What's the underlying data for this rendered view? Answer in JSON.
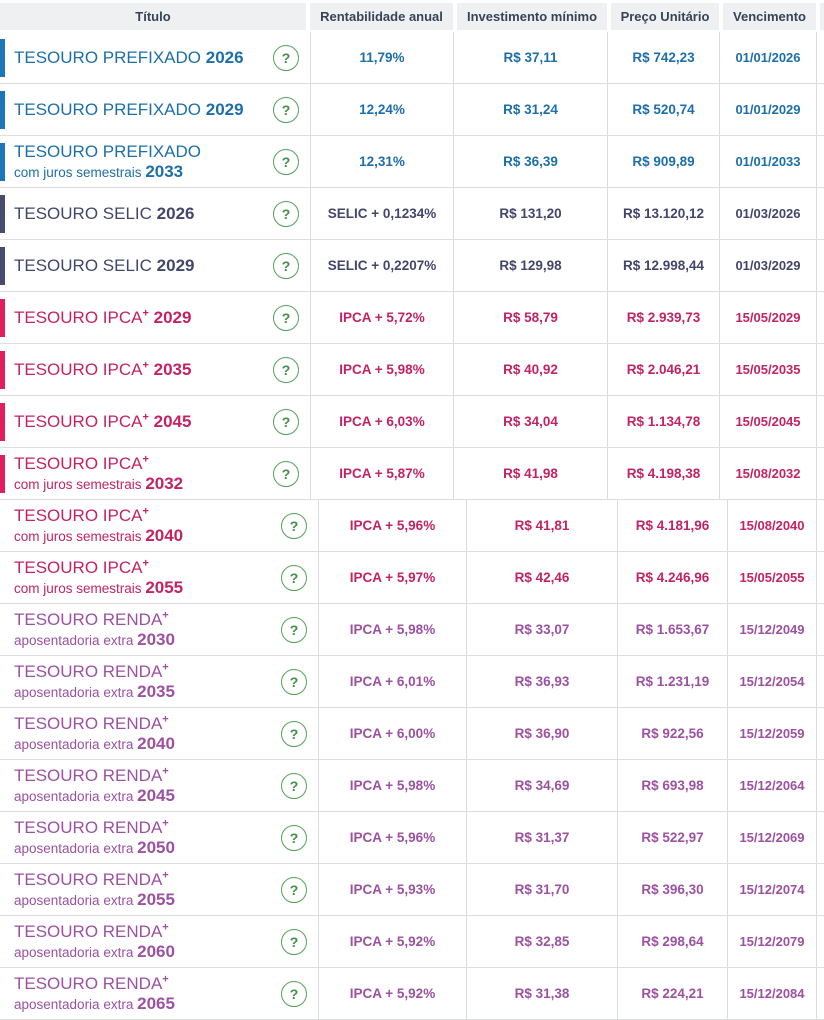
{
  "table": {
    "columns": [
      {
        "key": "titulo",
        "label": "Título"
      },
      {
        "key": "rentabilidade",
        "label": "Rentabilidade anual"
      },
      {
        "key": "investimento",
        "label": "Investimento mínimo"
      },
      {
        "key": "preco",
        "label": "Preço Unitário"
      },
      {
        "key": "vencimento",
        "label": "Vencimento"
      }
    ],
    "help_icon_glyph": "?",
    "rows": [
      {
        "title": "TESOURO PREFIXADO",
        "plus": false,
        "subtitle": "",
        "year": "2026",
        "theme": "prefixado",
        "bar": true,
        "section": "A",
        "rate": "11,79%",
        "min": "R$ 37,11",
        "price": "R$ 742,23",
        "due": "01/01/2026"
      },
      {
        "title": "TESOURO PREFIXADO",
        "plus": false,
        "subtitle": "",
        "year": "2029",
        "theme": "prefixado",
        "bar": true,
        "section": "A",
        "rate": "12,24%",
        "min": "R$ 31,24",
        "price": "R$ 520,74",
        "due": "01/01/2029"
      },
      {
        "title": "TESOURO PREFIXADO",
        "plus": false,
        "subtitle": "com juros semestrais",
        "year": "2033",
        "theme": "prefixado",
        "bar": true,
        "section": "A",
        "rate": "12,31%",
        "min": "R$ 36,39",
        "price": "R$ 909,89",
        "due": "01/01/2033"
      },
      {
        "title": "TESOURO SELIC",
        "plus": false,
        "subtitle": "",
        "year": "2026",
        "theme": "selic",
        "bar": true,
        "section": "A",
        "rate": "SELIC + 0,1234%",
        "min": "R$ 131,20",
        "price": "R$ 13.120,12",
        "due": "01/03/2026"
      },
      {
        "title": "TESOURO SELIC",
        "plus": false,
        "subtitle": "",
        "year": "2029",
        "theme": "selic",
        "bar": true,
        "section": "A",
        "rate": "SELIC + 0,2207%",
        "min": "R$ 129,98",
        "price": "R$ 12.998,44",
        "due": "01/03/2029"
      },
      {
        "title": "TESOURO IPCA",
        "plus": true,
        "subtitle": "",
        "year": "2029",
        "theme": "ipca",
        "bar": true,
        "section": "A",
        "rate": "IPCA + 5,72%",
        "min": "R$ 58,79",
        "price": "R$ 2.939,73",
        "due": "15/05/2029"
      },
      {
        "title": "TESOURO IPCA",
        "plus": true,
        "subtitle": "",
        "year": "2035",
        "theme": "ipca",
        "bar": true,
        "section": "A",
        "rate": "IPCA + 5,98%",
        "min": "R$ 40,92",
        "price": "R$ 2.046,21",
        "due": "15/05/2035"
      },
      {
        "title": "TESOURO IPCA",
        "plus": true,
        "subtitle": "",
        "year": "2045",
        "theme": "ipca",
        "bar": true,
        "section": "A",
        "rate": "IPCA + 6,03%",
        "min": "R$ 34,04",
        "price": "R$ 1.134,78",
        "due": "15/05/2045"
      },
      {
        "title": "TESOURO IPCA",
        "plus": true,
        "subtitle": "com juros semestrais",
        "year": "2032",
        "theme": "ipca",
        "bar": true,
        "section": "A",
        "rate": "IPCA + 5,87%",
        "min": "R$ 41,98",
        "price": "R$ 4.198,38",
        "due": "15/08/2032"
      },
      {
        "title": "TESOURO IPCA",
        "plus": true,
        "subtitle": "com juros semestrais",
        "year": "2040",
        "theme": "ipca",
        "bar": false,
        "section": "B",
        "rate": "IPCA + 5,96%",
        "min": "R$ 41,81",
        "price": "R$ 4.181,96",
        "due": "15/08/2040"
      },
      {
        "title": "TESOURO IPCA",
        "plus": true,
        "subtitle": "com juros semestrais",
        "year": "2055",
        "theme": "ipca",
        "bar": false,
        "section": "B",
        "rate": "IPCA + 5,97%",
        "min": "R$ 42,46",
        "price": "R$ 4.246,96",
        "due": "15/05/2055"
      },
      {
        "title": "TESOURO RENDA",
        "plus": true,
        "subtitle": "aposentadoria extra",
        "year": "2030",
        "theme": "renda",
        "bar": false,
        "section": "B",
        "rate": "IPCA + 5,98%",
        "min": "R$ 33,07",
        "price": "R$ 1.653,67",
        "due": "15/12/2049"
      },
      {
        "title": "TESOURO RENDA",
        "plus": true,
        "subtitle": "aposentadoria extra",
        "year": "2035",
        "theme": "renda",
        "bar": false,
        "section": "B",
        "rate": "IPCA + 6,01%",
        "min": "R$ 36,93",
        "price": "R$ 1.231,19",
        "due": "15/12/2054"
      },
      {
        "title": "TESOURO RENDA",
        "plus": true,
        "subtitle": "aposentadoria extra",
        "year": "2040",
        "theme": "renda",
        "bar": false,
        "section": "B",
        "rate": "IPCA + 6,00%",
        "min": "R$ 36,90",
        "price": "R$ 922,56",
        "due": "15/12/2059"
      },
      {
        "title": "TESOURO RENDA",
        "plus": true,
        "subtitle": "aposentadoria extra",
        "year": "2045",
        "theme": "renda",
        "bar": false,
        "section": "B",
        "rate": "IPCA + 5,98%",
        "min": "R$ 34,69",
        "price": "R$ 693,98",
        "due": "15/12/2064"
      },
      {
        "title": "TESOURO RENDA",
        "plus": true,
        "subtitle": "aposentadoria extra",
        "year": "2050",
        "theme": "renda",
        "bar": false,
        "section": "B",
        "rate": "IPCA + 5,96%",
        "min": "R$ 31,37",
        "price": "R$ 522,97",
        "due": "15/12/2069"
      },
      {
        "title": "TESOURO RENDA",
        "plus": true,
        "subtitle": "aposentadoria extra",
        "year": "2055",
        "theme": "renda",
        "bar": false,
        "section": "B",
        "rate": "IPCA + 5,93%",
        "min": "R$ 31,70",
        "price": "R$ 396,30",
        "due": "15/12/2074"
      },
      {
        "title": "TESOURO RENDA",
        "plus": true,
        "subtitle": "aposentadoria extra",
        "year": "2060",
        "theme": "renda",
        "bar": false,
        "section": "B",
        "rate": "IPCA + 5,92%",
        "min": "R$ 32,85",
        "price": "R$ 298,64",
        "due": "15/12/2079"
      },
      {
        "title": "TESOURO RENDA",
        "plus": true,
        "subtitle": "aposentadoria extra",
        "year": "2065",
        "theme": "renda",
        "bar": false,
        "section": "B",
        "rate": "IPCA + 5,92%",
        "min": "R$ 31,38",
        "price": "R$ 224,21",
        "due": "15/12/2084"
      }
    ]
  },
  "colors": {
    "prefixado": "#1d6fa9",
    "selic": "#42466b",
    "ipca": "#c32364",
    "renda": "#9c51a1",
    "help_green": "#3d8f46",
    "header_bg": "#eef0f2",
    "header_text": "#3a4257",
    "border": "#d9dbde"
  }
}
